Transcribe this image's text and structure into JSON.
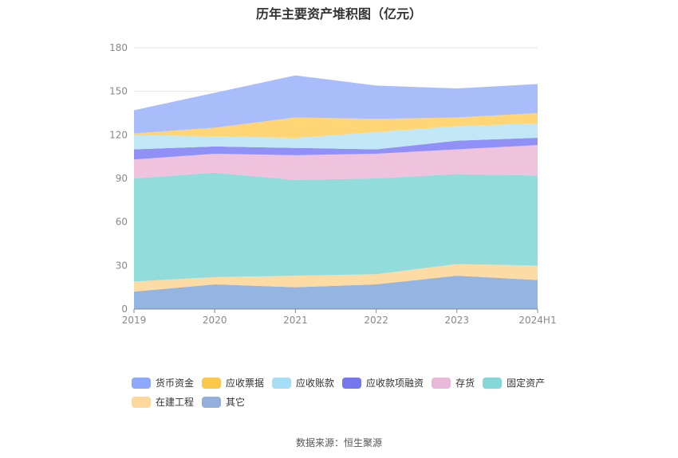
{
  "chart_data": {
    "type": "area",
    "title": "历年主要资产堆积图（亿元）",
    "categories": [
      "2019",
      "2020",
      "2021",
      "2022",
      "2023",
      "2024H1"
    ],
    "ylim": [
      0,
      180
    ],
    "yticks": [
      0,
      30,
      60,
      90,
      120,
      150,
      180
    ],
    "stacked": true,
    "series": [
      {
        "name": "其它",
        "color": "#8eb0e0",
        "values": [
          12,
          17,
          15,
          17,
          23,
          20
        ]
      },
      {
        "name": "在建工程",
        "color": "#fdd9a0",
        "values": [
          7,
          5,
          8,
          7,
          8,
          10
        ]
      },
      {
        "name": "固定资产",
        "color": "#8ddada",
        "values": [
          71,
          72,
          66,
          66,
          62,
          62
        ]
      },
      {
        "name": "存货",
        "color": "#eec0dc",
        "values": [
          13,
          13,
          17,
          17,
          17,
          21
        ]
      },
      {
        "name": "应收款项融资",
        "color": "#8a8af5",
        "values": [
          7,
          5,
          5,
          3,
          6,
          5
        ]
      },
      {
        "name": "应收账款",
        "color": "#bfe6f7",
        "values": [
          10,
          7,
          7,
          12,
          10,
          10
        ]
      },
      {
        "name": "应收票据",
        "color": "#ffd36e",
        "values": [
          1,
          6,
          14,
          9,
          6,
          7
        ]
      },
      {
        "name": "货币资金",
        "color": "#a4b9fb",
        "values": [
          16,
          24,
          29,
          23,
          20,
          20
        ]
      }
    ],
    "legend_position": "bottom"
  },
  "legend": [
    {
      "label": "货币资金",
      "color": "#8ea8fb"
    },
    {
      "label": "应收票据",
      "color": "#fcc84b"
    },
    {
      "label": "应收账款",
      "color": "#a6def5"
    },
    {
      "label": "应收款项融资",
      "color": "#7676ef"
    },
    {
      "label": "存货",
      "color": "#e8b8d9"
    },
    {
      "label": "固定资产",
      "color": "#86d7d7"
    },
    {
      "label": "在建工程",
      "color": "#fdd79b"
    },
    {
      "label": "其它",
      "color": "#93b0db"
    }
  ],
  "source": "数据来源：恒生聚源"
}
